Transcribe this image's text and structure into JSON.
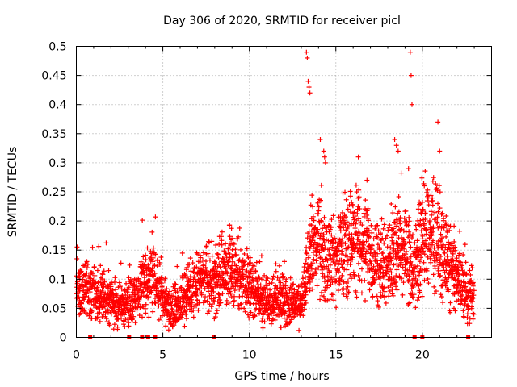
{
  "chart_data": {
    "type": "scatter",
    "title": "Day 306 of 2020, SRMTID for receiver picl",
    "xlabel": "GPS time / hours",
    "ylabel": "SRMTID / TECUs",
    "xlim": [
      0,
      24
    ],
    "ylim": [
      0,
      0.5
    ],
    "x_ticks": [
      0,
      5,
      10,
      15,
      20
    ],
    "x_tick_labels": [
      "0",
      "5",
      "10",
      "15",
      "20"
    ],
    "y_ticks": [
      0,
      0.05,
      0.1,
      0.15,
      0.2,
      0.25,
      0.3,
      0.35,
      0.4,
      0.45,
      0.5
    ],
    "y_tick_labels": [
      "0",
      "0.05",
      "0.1",
      "0.15",
      "0.2",
      "0.25",
      "0.3",
      "0.35",
      "0.4",
      "0.45",
      "0.5"
    ],
    "grid": true,
    "marker": "+",
    "series_color": "#ff0000",
    "background_trend": {
      "x": [
        0,
        0.5,
        1,
        1.5,
        2,
        2.5,
        3,
        3.5,
        4,
        4.5,
        5,
        5.5,
        6,
        6.5,
        7,
        7.5,
        8,
        8.5,
        9,
        9.5,
        10,
        10.5,
        11,
        11.5,
        12,
        12.5,
        13,
        13.2,
        13.5,
        14,
        14.5,
        15,
        15.5,
        16,
        16.5,
        17,
        17.5,
        18,
        18.5,
        19,
        19.5,
        20,
        20.5,
        21,
        21.5,
        22,
        22.5,
        23
      ],
      "y": [
        0.08,
        0.09,
        0.08,
        0.07,
        0.06,
        0.055,
        0.06,
        0.07,
        0.09,
        0.1,
        0.07,
        0.05,
        0.06,
        0.08,
        0.09,
        0.1,
        0.1,
        0.11,
        0.12,
        0.11,
        0.09,
        0.07,
        0.065,
        0.07,
        0.06,
        0.055,
        0.05,
        0.08,
        0.15,
        0.17,
        0.14,
        0.13,
        0.15,
        0.17,
        0.16,
        0.14,
        0.13,
        0.12,
        0.16,
        0.15,
        0.12,
        0.18,
        0.19,
        0.16,
        0.13,
        0.1,
        0.08,
        0.07
      ]
    },
    "spikes": {
      "x": [
        13.3,
        13.35,
        13.4,
        13.45,
        13.5,
        14.3,
        14.35,
        14.4,
        16.3,
        18.4,
        18.5,
        19.3,
        19.35,
        19.4,
        20.9,
        21.0,
        19.2,
        18.6,
        16.8,
        14.1
      ],
      "y": [
        0.49,
        0.48,
        0.44,
        0.43,
        0.42,
        0.32,
        0.31,
        0.3,
        0.31,
        0.34,
        0.33,
        0.49,
        0.45,
        0.4,
        0.37,
        0.32,
        0.29,
        0.32,
        0.27,
        0.34
      ]
    },
    "data_gaps_hours": [
      0.8,
      3.05,
      3.8,
      4.15,
      4.55,
      7.95,
      19.55,
      20.0,
      22.65
    ]
  }
}
